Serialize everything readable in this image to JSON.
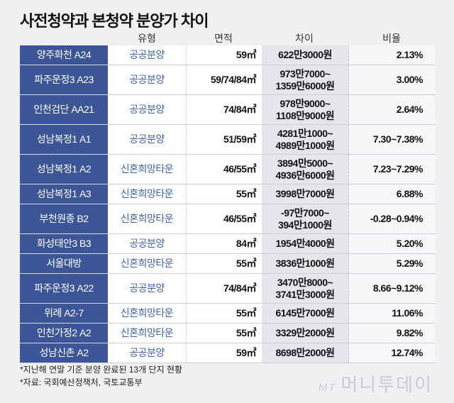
{
  "title": "사전청약과 본청약 분양가 차이",
  "headers": [
    "",
    "유형",
    "면적",
    "차이",
    "비율"
  ],
  "rows": [
    {
      "name": "양주화천 A24",
      "type": "공공분양",
      "area": "59㎡",
      "diff": [
        "622만3000원"
      ],
      "ratio": "2.13%"
    },
    {
      "name": "파주운정3 A23",
      "type": "공공분양",
      "area": "59/74/84㎡",
      "diff": [
        "973만7000~",
        "1359만6000원"
      ],
      "ratio": "3.00%"
    },
    {
      "name": "인천검단 AA21",
      "type": "공공분양",
      "area": "74/84㎡",
      "diff": [
        "978만9000~",
        "1108만9000원"
      ],
      "ratio": "2.64%"
    },
    {
      "name": "성남복정1 A1",
      "type": "공공분양",
      "area": "51/59㎡",
      "diff": [
        "4281만1000~",
        "4989만1000원"
      ],
      "ratio": "7.30~7.38%"
    },
    {
      "name": "성남복정1 A2",
      "type": "신혼희망타운",
      "area": "46/55㎡",
      "diff": [
        "3894만5000~",
        "4936만6000원"
      ],
      "ratio": "7.23~7.29%"
    },
    {
      "name": "성남복정1 A3",
      "type": "신혼희망타운",
      "area": "55㎡",
      "diff": [
        "3998만7000원"
      ],
      "ratio": "6.88%"
    },
    {
      "name": "부천원종 B2",
      "type": "신혼희망타운",
      "area": "46/55㎡",
      "diff": [
        "-97만7000~",
        "394만1000원"
      ],
      "ratio": "-0.28~0.94%"
    },
    {
      "name": "화성태안3 B3",
      "type": "공공분양",
      "area": "84㎡",
      "diff": [
        "1954만4000원"
      ],
      "ratio": "5.20%"
    },
    {
      "name": "서울대방",
      "type": "신혼희망타운",
      "area": "55㎡",
      "diff": [
        "3836만1000원"
      ],
      "ratio": "5.29%"
    },
    {
      "name": "파주운정3 A22",
      "type": "공공분양",
      "area": "74/84㎡",
      "diff": [
        "3470만8000~",
        "3741만3000원"
      ],
      "ratio": "8.66~9.12%"
    },
    {
      "name": "위례 A2-7",
      "type": "신혼희망타운",
      "area": "55㎡",
      "diff": [
        "6145만7000원"
      ],
      "ratio": "11.06%"
    },
    {
      "name": "인천가정2 A2",
      "type": "신혼희망타운",
      "area": "55㎡",
      "diff": [
        "3329만2000원"
      ],
      "ratio": "9.82%"
    },
    {
      "name": "성남신촌 A2",
      "type": "공공분양",
      "area": "59㎡",
      "diff": [
        "8698만2000원"
      ],
      "ratio": "12.74%"
    }
  ],
  "notes": [
    "*지난해 연말 기준 분양 완료된 13개 단지 현황",
    "*자료: 국회예산정책처, 국토교통부"
  ],
  "logo": {
    "mark": "MT",
    "text": "머니투데이"
  },
  "colors": {
    "name_bg": "#3b5596",
    "type_text": "#3d62a8",
    "diff_bg": "#e4e6ea"
  }
}
